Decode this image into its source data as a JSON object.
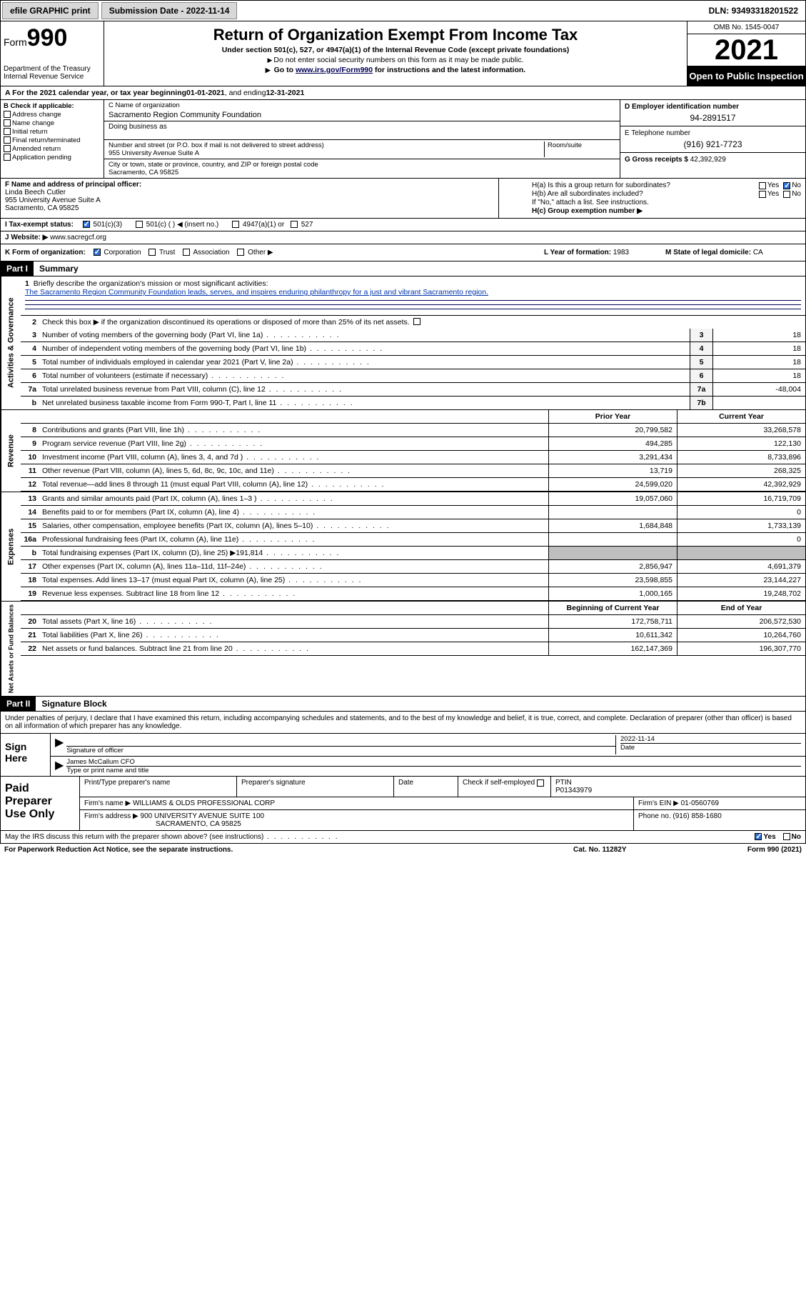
{
  "topbar": {
    "efile": "efile GRAPHIC print",
    "submission_label": "Submission Date - ",
    "submission_date": "2022-11-14",
    "dln_label": "DLN: ",
    "dln": "93493318201522"
  },
  "header": {
    "form_prefix": "Form",
    "form_num": "990",
    "dept": "Department of the Treasury\nInternal Revenue Service",
    "title": "Return of Organization Exempt From Income Tax",
    "subtitle": "Under section 501(c), 527, or 4947(a)(1) of the Internal Revenue Code (except private foundations)",
    "warn1": "Do not enter social security numbers on this form as it may be made public.",
    "warn2_prefix": "Go to ",
    "warn2_link": "www.irs.gov/Form990",
    "warn2_suffix": " for instructions and the latest information.",
    "omb": "OMB No. 1545-0047",
    "year": "2021",
    "open": "Open to Public Inspection"
  },
  "rowA": {
    "text": "A For the 2021 calendar year, or tax year beginning ",
    "begin": "01-01-2021",
    "mid": " , and ending ",
    "end": "12-31-2021"
  },
  "secB": {
    "label": "B Check if applicable:",
    "opts": [
      "Address change",
      "Name change",
      "Initial return",
      "Final return/terminated",
      "Amended return",
      "Application pending"
    ],
    "c_label": "C Name of organization",
    "org": "Sacramento Region Community Foundation",
    "dba_label": "Doing business as",
    "addr_label": "Number and street (or P.O. box if mail is not delivered to street address)",
    "room_label": "Room/suite",
    "addr": "955 University Avenue Suite A",
    "city_label": "City or town, state or province, country, and ZIP or foreign postal code",
    "city": "Sacramento, CA  95825",
    "d_label": "D Employer identification number",
    "ein": "94-2891517",
    "e_label": "E Telephone number",
    "phone": "(916) 921-7723",
    "g_label": "G Gross receipts $ ",
    "gross": "42,392,929"
  },
  "secF": {
    "f_label": "F Name and address of principal officer:",
    "officer": "Linda Beech Cutler",
    "officer_addr1": "955 University Avenue Suite A",
    "officer_addr2": "Sacramento, CA  95825",
    "ha_label": "H(a)  Is this a group return for subordinates?",
    "hb_label": "H(b)  Are all subordinates included?",
    "hb_note": "If \"No,\" attach a list. See instructions.",
    "hc_label": "H(c)  Group exemption number ▶",
    "yes": "Yes",
    "no": "No"
  },
  "secI": {
    "label": "I    Tax-exempt status:",
    "c3": "501(c)(3)",
    "c": "501(c) (   ) ◀ (insert no.)",
    "a1": "4947(a)(1) or",
    "s527": "527"
  },
  "secJ": {
    "label": "J   Website: ▶ ",
    "site": "www.sacregcf.org"
  },
  "secK": {
    "label": "K Form of organization:",
    "corp": "Corporation",
    "trust": "Trust",
    "assoc": "Association",
    "other": "Other ▶",
    "l_label": "L Year of formation: ",
    "l_val": "1983",
    "m_label": "M State of legal domicile: ",
    "m_val": "CA"
  },
  "parts": {
    "p1": "Part I",
    "p1_title": "Summary",
    "p2": "Part II",
    "p2_title": "Signature Block"
  },
  "summary": {
    "line1_label": "Briefly describe the organization's mission or most significant activities:",
    "mission": "The Sacramento Region Community Foundation leads, serves, and inspires enduring philanthropy for a just and vibrant Sacramento region.",
    "line2": "Check this box ▶        if the organization discontinued its operations or disposed of more than 25% of its net assets.",
    "lines": [
      {
        "n": "3",
        "t": "Number of voting members of the governing body (Part VI, line 1a)",
        "box": "3",
        "v": "18"
      },
      {
        "n": "4",
        "t": "Number of independent voting members of the governing body (Part VI, line 1b)",
        "box": "4",
        "v": "18"
      },
      {
        "n": "5",
        "t": "Total number of individuals employed in calendar year 2021 (Part V, line 2a)",
        "box": "5",
        "v": "18"
      },
      {
        "n": "6",
        "t": "Total number of volunteers (estimate if necessary)",
        "box": "6",
        "v": "18"
      },
      {
        "n": "7a",
        "t": "Total unrelated business revenue from Part VIII, column (C), line 12",
        "box": "7a",
        "v": "-48,004"
      },
      {
        "n": "b",
        "t": "Net unrelated business taxable income from Form 990-T, Part I, line 11",
        "box": "7b",
        "v": ""
      }
    ],
    "vtab1": "Activities & Governance"
  },
  "fin": {
    "prior_head": "Prior Year",
    "curr_head": "Current Year",
    "revenue": [
      {
        "n": "8",
        "t": "Contributions and grants (Part VIII, line 1h)",
        "p": "20,799,582",
        "c": "33,268,578"
      },
      {
        "n": "9",
        "t": "Program service revenue (Part VIII, line 2g)",
        "p": "494,285",
        "c": "122,130"
      },
      {
        "n": "10",
        "t": "Investment income (Part VIII, column (A), lines 3, 4, and 7d )",
        "p": "3,291,434",
        "c": "8,733,896"
      },
      {
        "n": "11",
        "t": "Other revenue (Part VIII, column (A), lines 5, 6d, 8c, 9c, 10c, and 11e)",
        "p": "13,719",
        "c": "268,325"
      },
      {
        "n": "12",
        "t": "Total revenue—add lines 8 through 11 (must equal Part VIII, column (A), line 12)",
        "p": "24,599,020",
        "c": "42,392,929"
      }
    ],
    "vtab_rev": "Revenue",
    "expenses": [
      {
        "n": "13",
        "t": "Grants and similar amounts paid (Part IX, column (A), lines 1–3 )",
        "p": "19,057,060",
        "c": "16,719,709"
      },
      {
        "n": "14",
        "t": "Benefits paid to or for members (Part IX, column (A), line 4)",
        "p": "",
        "c": "0"
      },
      {
        "n": "15",
        "t": "Salaries, other compensation, employee benefits (Part IX, column (A), lines 5–10)",
        "p": "1,684,848",
        "c": "1,733,139"
      },
      {
        "n": "16a",
        "t": "Professional fundraising fees (Part IX, column (A), line 11e)",
        "p": "",
        "c": "0"
      },
      {
        "n": "b",
        "t": "Total fundraising expenses (Part IX, column (D), line 25) ▶191,814",
        "p": "shade",
        "c": "shade"
      },
      {
        "n": "17",
        "t": "Other expenses (Part IX, column (A), lines 11a–11d, 11f–24e)",
        "p": "2,856,947",
        "c": "4,691,379"
      },
      {
        "n": "18",
        "t": "Total expenses. Add lines 13–17 (must equal Part IX, column (A), line 25)",
        "p": "23,598,855",
        "c": "23,144,227"
      },
      {
        "n": "19",
        "t": "Revenue less expenses. Subtract line 18 from line 12",
        "p": "1,000,165",
        "c": "19,248,702"
      }
    ],
    "vtab_exp": "Expenses",
    "net_head1": "Beginning of Current Year",
    "net_head2": "End of Year",
    "net": [
      {
        "n": "20",
        "t": "Total assets (Part X, line 16)",
        "p": "172,758,711",
        "c": "206,572,530"
      },
      {
        "n": "21",
        "t": "Total liabilities (Part X, line 26)",
        "p": "10,611,342",
        "c": "10,264,760"
      },
      {
        "n": "22",
        "t": "Net assets or fund balances. Subtract line 21 from line 20",
        "p": "162,147,369",
        "c": "196,307,770"
      }
    ],
    "vtab_net": "Net Assets or Fund Balances"
  },
  "sig": {
    "decl": "Under penalties of perjury, I declare that I have examined this return, including accompanying schedules and statements, and to the best of my knowledge and belief, it is true, correct, and complete. Declaration of preparer (other than officer) is based on all information of which preparer has any knowledge.",
    "sign_here": "Sign Here",
    "sig_officer": "Signature of officer",
    "date_label": "Date",
    "date": "2022-11-14",
    "name_label": "Type or print name and title",
    "officer_name": "James McCallum CFO"
  },
  "prep": {
    "label": "Paid Preparer Use Only",
    "pt_name": "Print/Type preparer's name",
    "pt_sig": "Preparer's signature",
    "pt_date": "Date",
    "check_label": "Check         if self-employed",
    "ptin_label": "PTIN",
    "ptin": "P01343979",
    "firm_name_label": "Firm's name      ▶ ",
    "firm_name": "WILLIAMS & OLDS PROFESSIONAL CORP",
    "firm_ein_label": "Firm's EIN ▶ ",
    "firm_ein": "01-0560769",
    "firm_addr_label": "Firm's address ▶ ",
    "firm_addr1": "900 UNIVERSITY AVENUE SUITE 100",
    "firm_addr2": "SACRAMENTO, CA  95825",
    "phone_label": "Phone no. ",
    "phone": "(916) 858-1680"
  },
  "footer": {
    "discuss": "May the IRS discuss this return with the preparer shown above? (see instructions)",
    "yes": "Yes",
    "no": "No",
    "paperwork": "For Paperwork Reduction Act Notice, see the separate instructions.",
    "cat": "Cat. No. 11282Y",
    "form": "Form 990 (2021)"
  }
}
